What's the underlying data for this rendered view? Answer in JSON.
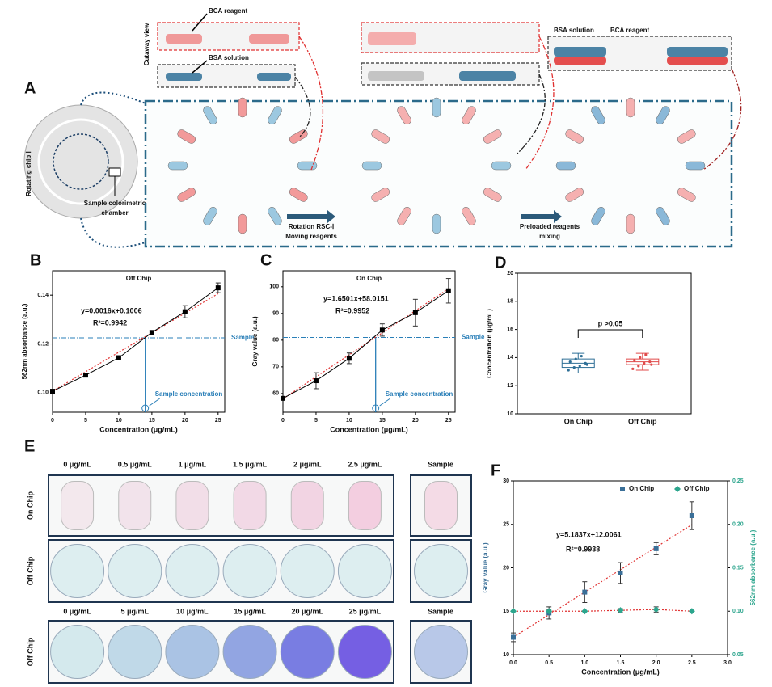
{
  "panel_a": {
    "label": "A",
    "cutaway_view": "Cutaway view",
    "callouts": [
      "BCA reagent",
      "BSA solution",
      "BSA solution",
      "BCA reagent"
    ],
    "chip": "Rotating chip Ⅰ",
    "chamber": [
      "Sample colorimetric",
      "chamber"
    ],
    "steps": [
      [
        "Rotation RSC-Ⅰ",
        "Moving reagents"
      ],
      [
        "Preloaded reagents",
        "mixing"
      ]
    ]
  },
  "panel_e": {
    "label": "E",
    "rows": [
      "On Chip",
      "Off Chip",
      "Off Chip"
    ],
    "top_concentrations": [
      "0 μg/mL",
      "0.5 μg/mL",
      "1 μg/mL",
      "1.5 μg/mL",
      "2 μg/mL",
      "2.5 μg/mL"
    ],
    "bottom_concentrations": [
      "0 μg/mL",
      "5 μg/mL",
      "10 μg/mL",
      "15 μg/mL",
      "20 μg/mL",
      "25 μg/mL"
    ],
    "sample": "Sample"
  },
  "chart_data": [
    {
      "type": "line",
      "panel": "B",
      "title": "Off Chip",
      "x_label": "Concentration (μg/mL)",
      "y_label": "562nm absorbance (a.u.)",
      "x": [
        0,
        5,
        10,
        15,
        20,
        25
      ],
      "series": [
        {
          "color": "#000000",
          "values": [
            0.1006,
            0.1072,
            0.1143,
            0.1247,
            0.1332,
            0.143
          ],
          "errors": [
            0.0003,
            0.0005,
            0.0009,
            0.0008,
            0.0025,
            0.002
          ]
        }
      ],
      "fit": {
        "slope": 0.0016,
        "intercept": 0.1006,
        "color": "#e03030"
      },
      "annotations": [
        "y=0.0016x+0.1006",
        "R²=0.9942"
      ],
      "sample": {
        "label": "Sample",
        "y": 0.1225,
        "x": 14,
        "x_label": "Sample concentration",
        "color": "#2a7fb8"
      },
      "xlim": [
        0,
        26
      ],
      "ylim": [
        0.092,
        0.15
      ],
      "xticks": [
        0,
        5,
        10,
        15,
        20,
        25
      ],
      "yticks": [
        {
          "value": 0.1,
          "label": "0.10"
        },
        0.12,
        0.14
      ]
    },
    {
      "type": "line",
      "panel": "C",
      "title": "On Chip",
      "x_label": "Concentration (μg/mL)",
      "y_label": "Gray value (a.u.)",
      "x": [
        0,
        5,
        10,
        15,
        20,
        25
      ],
      "series": [
        {
          "color": "#000000",
          "values": [
            58.2,
            64.8,
            73.2,
            83.8,
            90.3,
            98.5
          ],
          "errors": [
            0.5,
            3,
            2,
            2.3,
            5,
            4.6
          ]
        }
      ],
      "fit": {
        "slope": 1.6501,
        "intercept": 58.0151,
        "color": "#e03030"
      },
      "annotations": [
        "y=1.6501x+58.0151",
        "R²=0.9952"
      ],
      "sample": {
        "label": "Sample",
        "y": 81,
        "x": 14,
        "x_label": "Sample concentration",
        "color": "#2a7fb8"
      },
      "xlim": [
        0,
        26
      ],
      "ylim": [
        53,
        106
      ],
      "xticks": [
        0,
        5,
        10,
        15,
        20,
        25
      ],
      "yticks": [
        60,
        70,
        80,
        90,
        100
      ]
    },
    {
      "type": "box",
      "panel": "D",
      "y_label": "Concentration (μg/mL)",
      "categories": [
        "On Chip",
        "Off Chip"
      ],
      "boxes": [
        {
          "color": "#2e6f96",
          "min": 12.9,
          "q1": 13.3,
          "median": 13.6,
          "q3": 13.9,
          "max": 14.3,
          "points": [
            13.1,
            13.3,
            13.4,
            13.6,
            13.7,
            13.9,
            14.1,
            13.5
          ]
        },
        {
          "color": "#e04a4a",
          "min": 13.1,
          "q1": 13.5,
          "median": 13.7,
          "q3": 13.9,
          "max": 14.3,
          "points": [
            13.2,
            13.4,
            13.6,
            13.7,
            13.8,
            14.0,
            14.2,
            13.5
          ]
        }
      ],
      "annotations": [
        "p >0.05"
      ],
      "ylim": [
        10,
        20
      ],
      "yticks": [
        10,
        12,
        14,
        16,
        18,
        20
      ]
    },
    {
      "type": "scatter",
      "panel": "F",
      "x_label": "Concentration (μg/mL)",
      "y_label": "Gray value (a.u.)",
      "y2_label": "562nm absorbance (a.u.)",
      "x": [
        0,
        0.5,
        1,
        1.5,
        2,
        2.5
      ],
      "series": [
        {
          "name": "On Chip",
          "color": "#3a6f98",
          "marker": "square",
          "values": [
            12,
            14.8,
            17.2,
            19.4,
            22.2,
            26
          ],
          "errors": [
            0.5,
            0.7,
            1.2,
            1.2,
            0.7,
            1.6
          ]
        },
        {
          "name": "Off Chip",
          "color": "#2ca58d",
          "marker": "diamond",
          "axis": "y2",
          "values": [
            0.1,
            0.1,
            0.1,
            0.101,
            0.102,
            0.1
          ],
          "errors": [
            0,
            0.002,
            0,
            0.002,
            0.003,
            0
          ]
        }
      ],
      "fit": {
        "slope": 5.1837,
        "intercept": 12.0061,
        "color": "#e03030"
      },
      "annotations": [
        "y=5.1837x+12.0061",
        "R²=0.9938"
      ],
      "legend": "upper right",
      "xlim": [
        0,
        3
      ],
      "ylim": [
        10,
        30
      ],
      "y2lim": [
        0.05,
        0.25
      ],
      "xticks": [
        {
          "value": 0,
          "label": "0.0"
        },
        0.5,
        {
          "value": 1,
          "label": "1.0"
        },
        1.5,
        {
          "value": 2,
          "label": "2.0"
        },
        2.5,
        {
          "value": 3,
          "label": "3.0"
        }
      ],
      "yticks": [
        10,
        15,
        20,
        25,
        30
      ],
      "y2ticks": [
        0.05,
        {
          "value": 0.1,
          "label": "0.10"
        },
        0.15,
        {
          "value": 0.2,
          "label": "0.20"
        },
        0.25
      ]
    }
  ]
}
